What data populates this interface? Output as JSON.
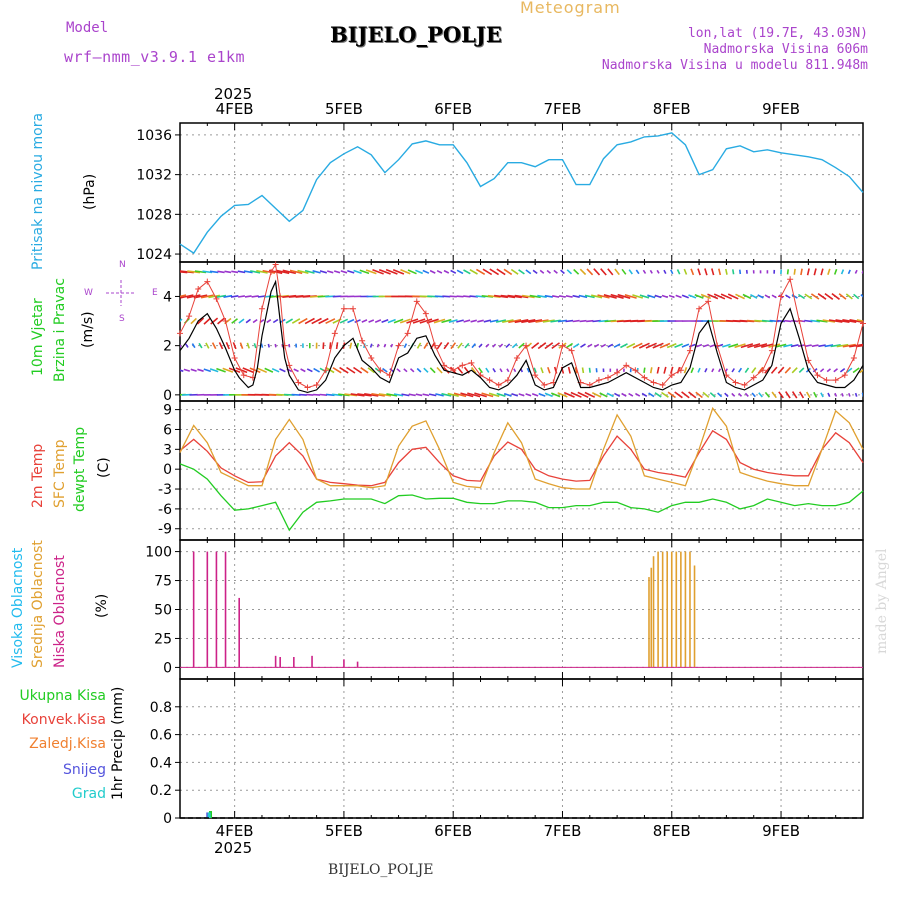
{
  "header": {
    "title": "BIJELO_POLJE",
    "subtitle": "Meteogram",
    "model_label": "Model",
    "model_name": "wrf–nmm_v3.9.1  e1km",
    "lonlat": "lon,lat (19.7E, 43.03N)",
    "elevation": "Nadmorska Visina 606m",
    "model_elevation": "Nadmorska Visina u modelu 811.948m",
    "footer": "BIJELO_POLJE",
    "credit": "made by Angel"
  },
  "time_axis": {
    "year": "2025",
    "days": [
      "4FEB",
      "5FEB",
      "6FEB",
      "7FEB",
      "8FEB",
      "9FEB"
    ],
    "hours": [
      0,
      24,
      48,
      72,
      96,
      120
    ],
    "range_hours": [
      -12,
      138
    ]
  },
  "colors": {
    "pressure": "#29abe2",
    "wind_speed": "#000000",
    "temp2m": "#e8423a",
    "sfc_temp": "#e0a030",
    "dewpoint": "#22cc22",
    "high_cloud": "#22bbee",
    "mid_cloud": "#e0a030",
    "low_cloud": "#cc2288",
    "total_precip": "#22cc22",
    "conv_precip": "#e8423a",
    "frozen_precip": "#f08030",
    "snow": "#5555dd",
    "hail": "#22cccc",
    "model_label": "#aa44cc"
  },
  "chart_data": [
    {
      "type": "line",
      "panel": "pressure",
      "ylabel": "Pritisak na nivou mora",
      "unit": "(hPa)",
      "ylim": [
        1023.2,
        1037.2
      ],
      "yticks": [
        1024,
        1028,
        1032,
        1036
      ],
      "series": [
        {
          "x": [
            -12,
            -9,
            -6,
            -3,
            0,
            3,
            6,
            9,
            12,
            15,
            18,
            21,
            24,
            27,
            30,
            33,
            36,
            39,
            42,
            45,
            48,
            51,
            54,
            57,
            60,
            63,
            66,
            69,
            72,
            75,
            78,
            81,
            84,
            87,
            90,
            93,
            96,
            99,
            102,
            105,
            108,
            111,
            114,
            117,
            120,
            123,
            126,
            129,
            132,
            135,
            138
          ],
          "values": [
            1025.0,
            1024.1,
            1026.2,
            1027.8,
            1028.9,
            1029.0,
            1029.9,
            1028.6,
            1027.3,
            1028.4,
            1031.5,
            1033.2,
            1034.1,
            1034.8,
            1034.0,
            1032.2,
            1033.5,
            1035.1,
            1035.4,
            1035.0,
            1035.0,
            1033.2,
            1030.8,
            1031.6,
            1033.2,
            1033.2,
            1032.8,
            1033.5,
            1033.5,
            1031.0,
            1031.0,
            1033.6,
            1035.0,
            1035.3,
            1035.8,
            1035.9,
            1036.2,
            1035.0,
            1032.0,
            1032.5,
            1034.6,
            1034.9,
            1034.3,
            1034.5,
            1034.2,
            1034.0,
            1033.8,
            1033.5,
            1032.7,
            1031.8,
            1030.2
          ]
        }
      ]
    },
    {
      "type": "line",
      "panel": "wind",
      "ylabel": "10m Vjetar",
      "ylabel2": "Brzina i Pravac",
      "unit": "(m/s)",
      "compass": [
        "W",
        "E",
        "N",
        "S"
      ],
      "ylim": [
        -0.25,
        5.4
      ],
      "yticks": [
        0,
        2,
        4
      ],
      "series": [
        {
          "name": "speed",
          "x": [
            -12,
            -10,
            -8,
            -6,
            -4,
            -2,
            0,
            1,
            2,
            3,
            4,
            5,
            6,
            8,
            9,
            10,
            11,
            12,
            14,
            16,
            18,
            20,
            22,
            24,
            26,
            28,
            30,
            32,
            34,
            36,
            38,
            40,
            42,
            44,
            46,
            48,
            50,
            52,
            54,
            56,
            58,
            60,
            62,
            64,
            66,
            68,
            70,
            72,
            74,
            76,
            78,
            80,
            82,
            84,
            86,
            88,
            90,
            92,
            94,
            96,
            98,
            100,
            102,
            104,
            106,
            108,
            110,
            112,
            114,
            116,
            118,
            120,
            122,
            124,
            126,
            128,
            130,
            132,
            134,
            136,
            138
          ],
          "values": [
            1.8,
            2.3,
            3.0,
            3.3,
            2.7,
            1.9,
            1.0,
            0.7,
            0.5,
            0.3,
            0.4,
            1.1,
            2.4,
            4.2,
            4.6,
            3.0,
            1.5,
            0.8,
            0.2,
            0.1,
            0.2,
            0.6,
            1.5,
            2.0,
            2.3,
            1.4,
            1.1,
            0.7,
            0.5,
            1.5,
            1.7,
            2.3,
            2.4,
            1.6,
            1.0,
            0.9,
            0.8,
            1.0,
            0.7,
            0.3,
            0.2,
            0.4,
            0.8,
            1.4,
            0.4,
            0.2,
            0.3,
            1.1,
            1.3,
            0.3,
            0.3,
            0.4,
            0.5,
            0.7,
            0.9,
            0.7,
            0.5,
            0.3,
            0.2,
            0.4,
            0.5,
            1.1,
            2.5,
            3.0,
            1.7,
            0.5,
            0.3,
            0.2,
            0.4,
            0.6,
            1.2,
            2.9,
            3.5,
            2.3,
            1.0,
            0.5,
            0.4,
            0.3,
            0.3,
            0.6,
            1.2
          ]
        },
        {
          "name": "gust",
          "x": [
            -12,
            -10,
            -8,
            -6,
            -4,
            -2,
            0,
            2,
            4,
            6,
            8,
            9,
            10,
            11,
            12,
            14,
            16,
            18,
            20,
            22,
            24,
            26,
            28,
            30,
            32,
            34,
            36,
            38,
            40,
            42,
            44,
            46,
            48,
            50,
            52,
            54,
            56,
            58,
            60,
            62,
            64,
            66,
            68,
            70,
            72,
            74,
            76,
            78,
            80,
            82,
            84,
            86,
            88,
            90,
            92,
            94,
            96,
            98,
            100,
            102,
            104,
            106,
            108,
            110,
            112,
            114,
            116,
            118,
            120,
            122,
            124,
            126,
            128,
            130,
            132,
            134,
            136,
            138
          ],
          "values": [
            2.5,
            3.2,
            4.3,
            4.6,
            3.9,
            3.0,
            1.5,
            0.8,
            0.7,
            3.5,
            5.0,
            5.3,
            4.0,
            2.0,
            1.2,
            0.5,
            0.3,
            0.4,
            1.0,
            2.5,
            3.5,
            3.5,
            2.2,
            1.5,
            1.0,
            0.8,
            2.0,
            2.5,
            3.8,
            3.3,
            2.0,
            1.2,
            1.0,
            1.2,
            1.3,
            0.8,
            0.6,
            0.4,
            0.6,
            1.5,
            2.0,
            0.8,
            0.4,
            0.5,
            2.0,
            1.8,
            0.5,
            0.4,
            0.6,
            0.7,
            0.9,
            1.2,
            1.0,
            0.7,
            0.5,
            0.4,
            0.8,
            1.0,
            1.8,
            3.5,
            3.8,
            2.0,
            0.8,
            0.5,
            0.4,
            0.7,
            1.0,
            1.8,
            4.0,
            4.7,
            3.0,
            1.4,
            0.8,
            0.6,
            0.6,
            0.8,
            1.5,
            2.9
          ]
        }
      ]
    },
    {
      "type": "line",
      "panel": "temperature",
      "ylabels": [
        "2m Temp",
        "SFC Temp",
        "dewpt Temp"
      ],
      "unit": "(C)",
      "ylim": [
        -10.7,
        10.3
      ],
      "yticks": [
        -9,
        -6,
        -3,
        0,
        3,
        6,
        9
      ],
      "x": [
        -12,
        -9,
        -6,
        -3,
        0,
        3,
        6,
        9,
        12,
        15,
        18,
        21,
        24,
        27,
        30,
        33,
        36,
        39,
        42,
        45,
        48,
        51,
        54,
        57,
        60,
        63,
        66,
        69,
        72,
        75,
        78,
        81,
        84,
        87,
        90,
        93,
        96,
        99,
        102,
        105,
        108,
        111,
        114,
        117,
        120,
        123,
        126,
        129,
        132,
        135,
        138
      ],
      "series": [
        {
          "name": "2m Temp",
          "values": [
            2.8,
            4.5,
            2.7,
            0.2,
            -1.0,
            -2.0,
            -1.9,
            2.0,
            4.0,
            2.0,
            -1.5,
            -2.0,
            -2.2,
            -2.4,
            -2.5,
            -2.0,
            1.0,
            3.0,
            3.3,
            1.0,
            -1.0,
            -1.7,
            -1.8,
            2.0,
            4.1,
            3.0,
            0.0,
            -1.0,
            -1.5,
            -1.8,
            -1.7,
            2.0,
            5.0,
            3.0,
            0.0,
            -0.5,
            -0.8,
            -1.2,
            2.5,
            5.8,
            4.5,
            1.0,
            0.0,
            -0.5,
            -0.8,
            -1.0,
            -1.0,
            3.0,
            5.5,
            4.0,
            1.0
          ]
        },
        {
          "name": "SFC Temp",
          "values": [
            2.5,
            6.6,
            4.0,
            -0.5,
            -1.5,
            -2.5,
            -2.5,
            4.5,
            7.5,
            4.5,
            -1.5,
            -2.5,
            -2.5,
            -2.5,
            -2.8,
            -2.5,
            3.5,
            6.5,
            7.3,
            3.0,
            -2.0,
            -2.6,
            -2.8,
            2.5,
            7.0,
            4.0,
            -1.5,
            -2.2,
            -2.8,
            -3.0,
            -3.0,
            3.0,
            8.2,
            5.0,
            -1.0,
            -1.5,
            -2.0,
            -2.5,
            3.0,
            9.2,
            6.5,
            -0.5,
            -1.2,
            -1.8,
            -2.2,
            -2.5,
            -2.5,
            3.0,
            8.8,
            7.0,
            3.0
          ]
        },
        {
          "name": "dewpt Temp",
          "values": [
            0.8,
            0.0,
            -1.5,
            -4.0,
            -6.2,
            -6.0,
            -5.5,
            -5.0,
            -9.2,
            -6.5,
            -5.0,
            -4.8,
            -4.5,
            -4.5,
            -4.5,
            -5.2,
            -4.0,
            -3.9,
            -4.5,
            -4.4,
            -4.4,
            -5.0,
            -5.2,
            -5.2,
            -4.8,
            -4.8,
            -5.0,
            -5.8,
            -5.8,
            -5.5,
            -5.5,
            -5.0,
            -5.0,
            -5.8,
            -6.0,
            -6.5,
            -5.5,
            -5.0,
            -5.0,
            -4.5,
            -5.0,
            -6.0,
            -5.5,
            -4.5,
            -5.0,
            -5.5,
            -5.2,
            -5.5,
            -5.5,
            -5.0,
            -3.3
          ]
        }
      ]
    },
    {
      "type": "bar",
      "panel": "cloud",
      "ylabels": [
        "Visoka Oblacnost",
        "Srednja Oblacnost",
        "Niska Oblacnost"
      ],
      "unit": "(%)",
      "ylim": [
        -10,
        110
      ],
      "yticks": [
        0,
        25,
        50,
        75,
        100
      ],
      "series": [
        {
          "name": "Niska Oblacnost",
          "x": [
            -9,
            -6,
            -4,
            -2,
            1,
            9,
            10,
            13,
            17,
            24,
            27
          ],
          "values": [
            100,
            100,
            100,
            100,
            60,
            10,
            9,
            9,
            10,
            7,
            5
          ]
        },
        {
          "name": "Srednja Oblacnost",
          "x": [
            91,
            91.5,
            92,
            93,
            94,
            95,
            96,
            97,
            98,
            99,
            100,
            101
          ],
          "values": [
            78,
            86,
            96,
            100,
            100,
            100,
            100,
            100,
            100,
            100,
            100,
            88
          ]
        },
        {
          "name": "Visoka Oblacnost",
          "x": [],
          "values": []
        }
      ]
    },
    {
      "type": "bar",
      "panel": "precip",
      "ylabels": [
        "Ukupna Kisa",
        "Konvek.Kisa",
        "Zaledj.Kisa",
        "Snijeg",
        "Grad"
      ],
      "ylabel_right": "1hr Precip (mm)",
      "ylim": [
        0,
        1.0
      ],
      "yticks": [
        0,
        0.2,
        0.4,
        0.6,
        0.8
      ],
      "series": [
        {
          "name": "Ukupna Kisa",
          "x": [
            -5.3
          ],
          "values": [
            0.05
          ]
        },
        {
          "name": "Snijeg",
          "x": [
            -5.9
          ],
          "values": [
            0.04
          ]
        },
        {
          "name": "Grad",
          "x": [
            -5.6
          ],
          "values": [
            0.04
          ]
        }
      ]
    }
  ]
}
